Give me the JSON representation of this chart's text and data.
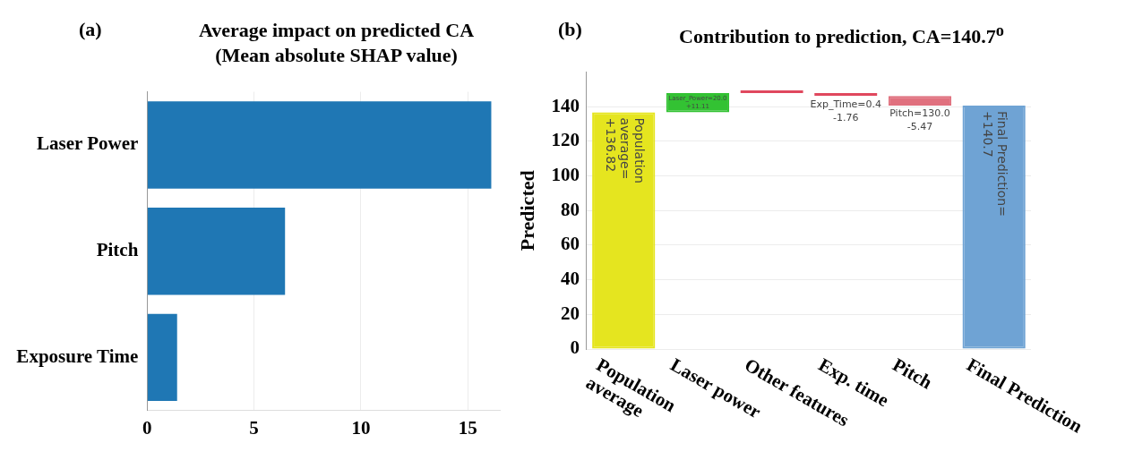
{
  "chart_data": [
    {
      "type": "bar",
      "orientation": "horizontal",
      "title": "Average impact on predicted CA\n(Mean absolute SHAP value)",
      "annotations": [
        "(a)"
      ],
      "categories": [
        "Laser Power",
        "Pitch",
        "Exposure Time"
      ],
      "values": [
        16.1,
        6.45,
        1.4
      ],
      "color": "#1f77b4",
      "xlim": [
        0,
        16.5
      ],
      "xticks": [
        0,
        5,
        10,
        15
      ],
      "grid": "x",
      "legend": false
    },
    {
      "type": "bar",
      "title": "Contribution to prediction, CA=140.7$^{o}$",
      "annotations": [
        "(b)"
      ],
      "ylabel": "Predicted",
      "categories": [
        "Population average",
        "Laser power",
        "Other features",
        "Exp. time",
        "Pitch",
        "Final Prediction"
      ],
      "values": [
        136.82,
        11.11,
        0,
        -1.76,
        -5.47,
        140.7
      ],
      "base": [
        0,
        136.82,
        147.93,
        147.93,
        146.17,
        0
      ],
      "colors": [
        "#e5e51f",
        "#33c233",
        "#e0485e",
        "#e0485e",
        "#e0707e",
        "#6fa3d4"
      ],
      "value_labels": [
        "Population\naverage=\n+136.82",
        "Laser_Power=20.0\n+11.11",
        null,
        "Exp_Time=0.4\n-1.76",
        "Pitch=130.0\n-5.47",
        "Final Prediction=\n+140.7"
      ],
      "ylim": [
        0,
        160
      ],
      "yticks": [
        0,
        20,
        40,
        60,
        80,
        100,
        120,
        140
      ],
      "grid": "y",
      "legend": false
    }
  ]
}
